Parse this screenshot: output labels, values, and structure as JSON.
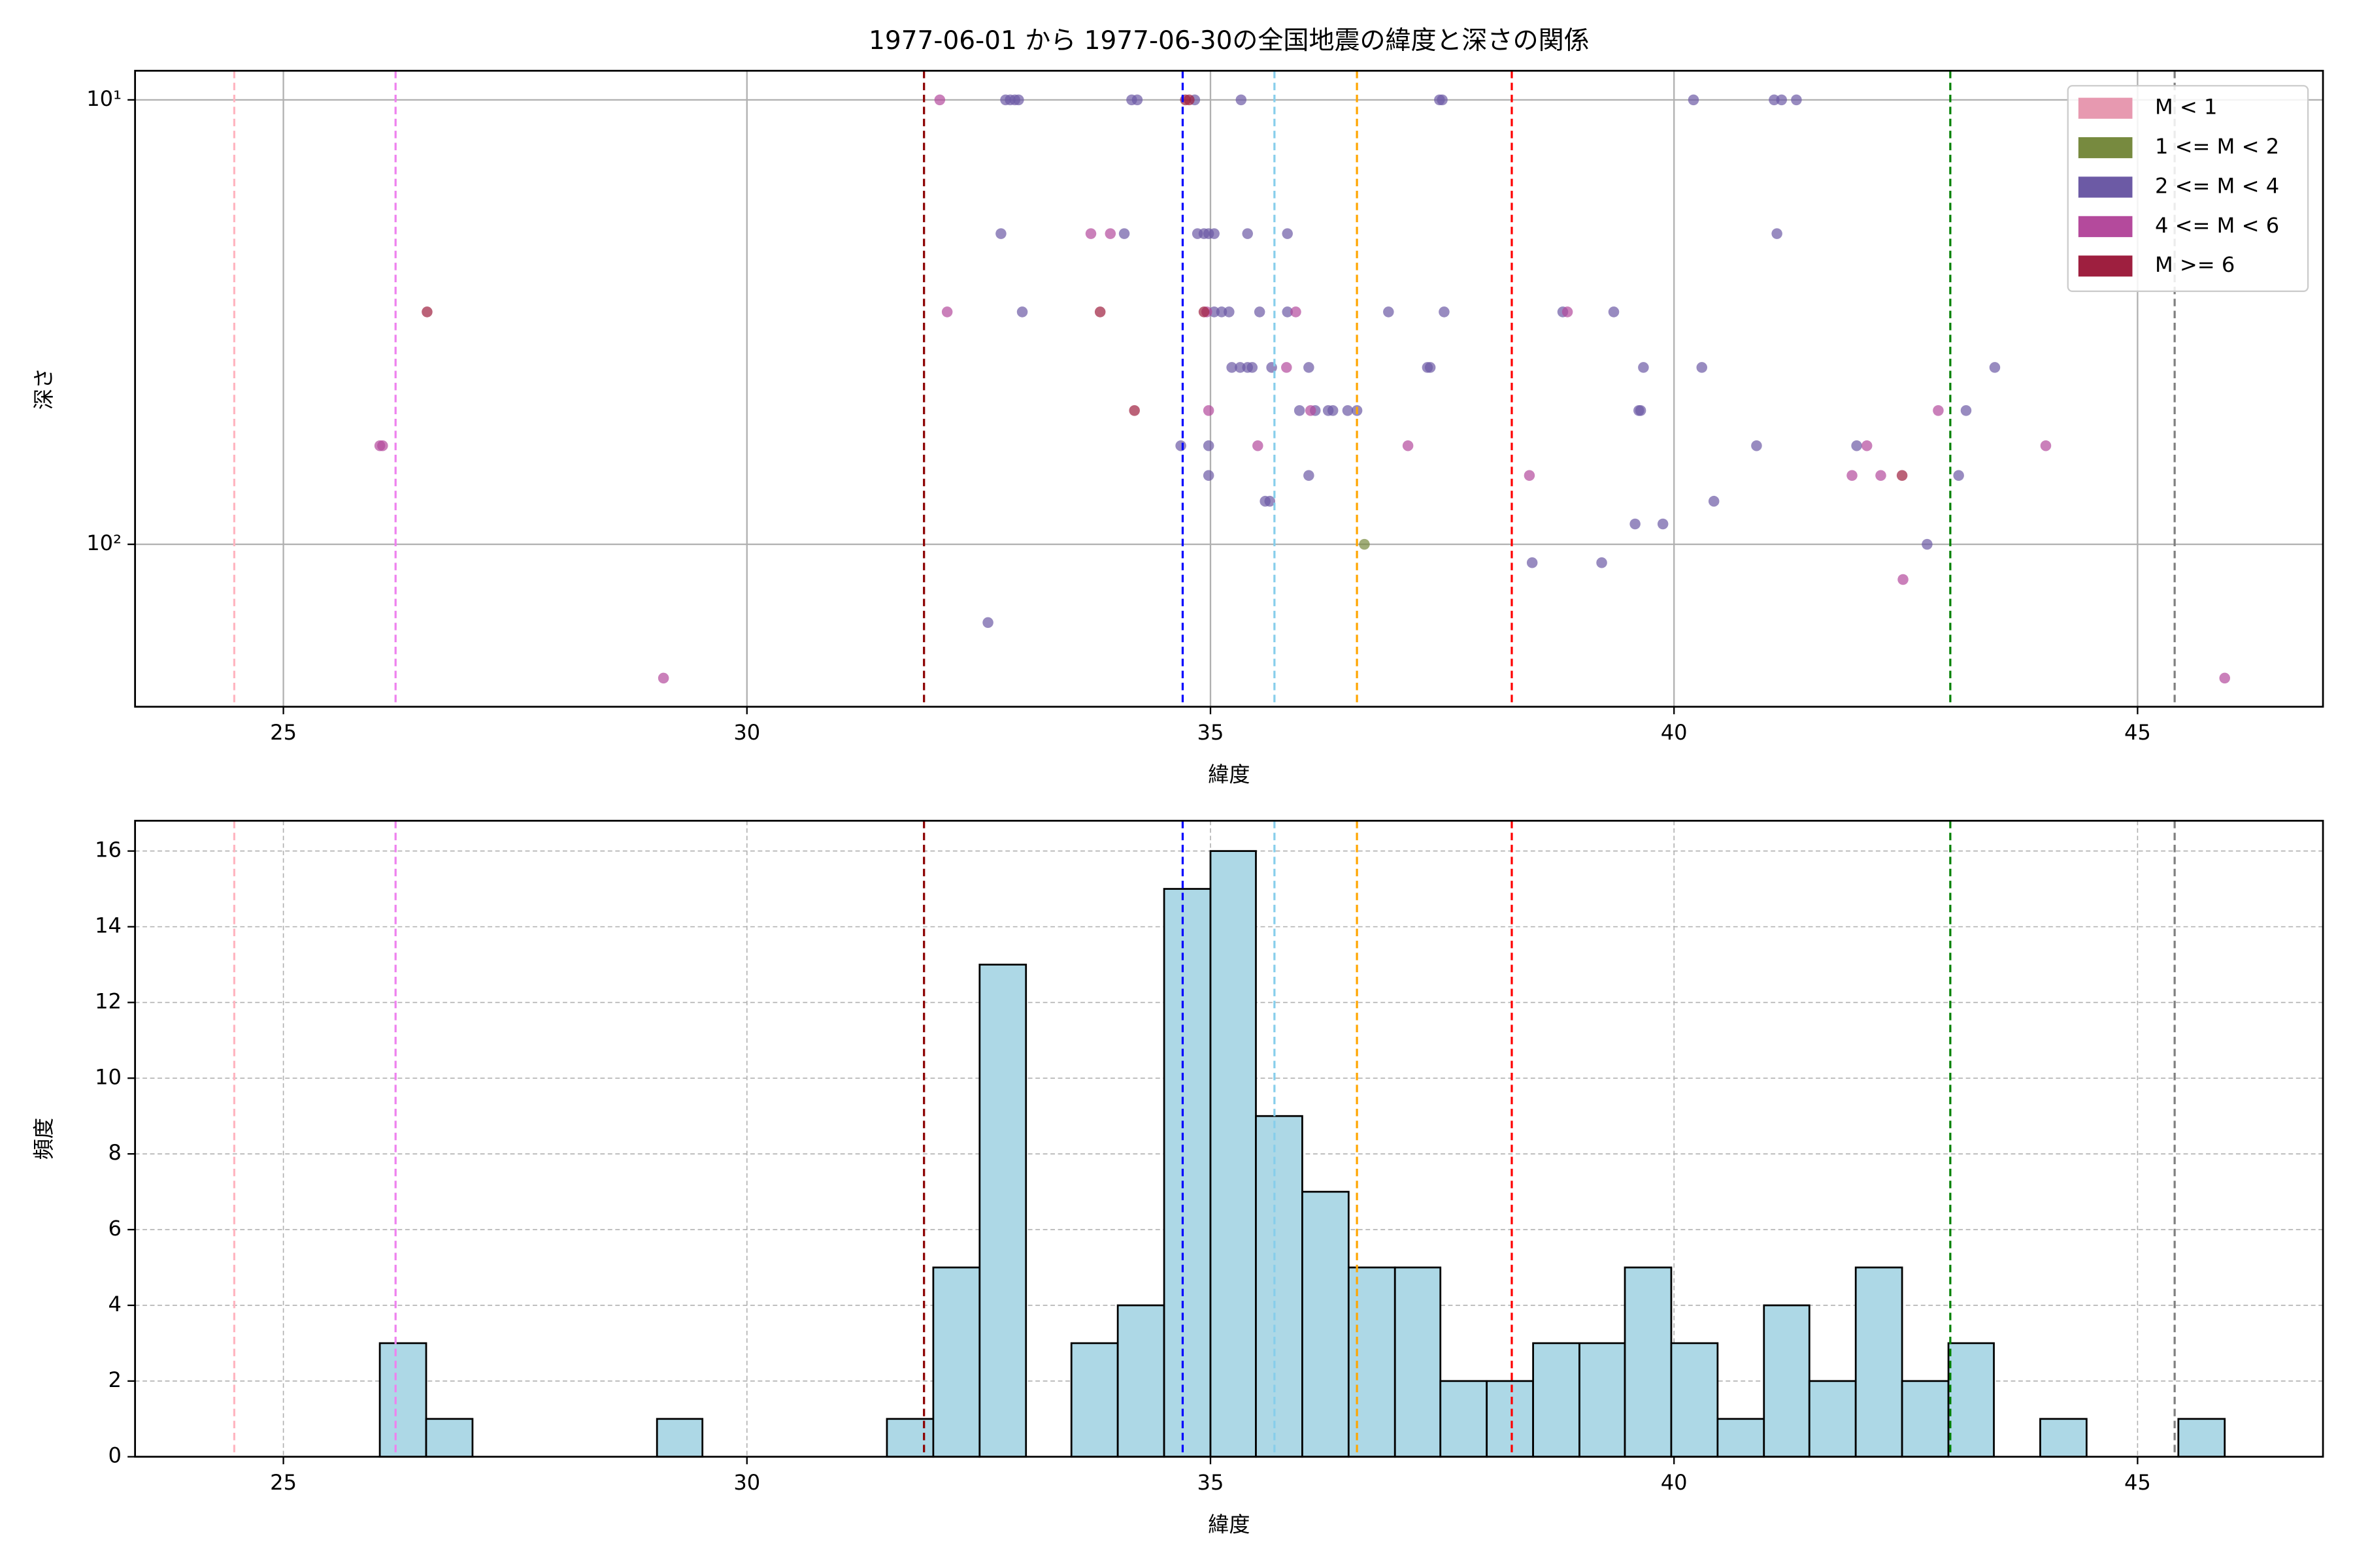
{
  "chart_data": [
    {
      "type": "scatter",
      "title": "1977-06-01 から 1977-06-30の全国地震の緯度と深さの関係",
      "xlabel": "緯度",
      "ylabel": "深さ",
      "xlim": [
        23.4,
        47.0
      ],
      "xticks": [
        25,
        30,
        35,
        40,
        45
      ],
      "ylim": [
        232,
        8.6
      ],
      "yticks": [
        {
          "value": 10,
          "label": "10¹"
        },
        {
          "value": 100,
          "label": "10²"
        }
      ],
      "log_y": true,
      "grid": true,
      "legend": "upper right",
      "vlines": [
        {
          "x": 24.47,
          "color": "#ffb6c1"
        },
        {
          "x": 26.21,
          "color": "#ee82ee"
        },
        {
          "x": 31.91,
          "color": "#8b0000"
        },
        {
          "x": 34.7,
          "color": "#0000ff"
        },
        {
          "x": 35.69,
          "color": "#87ceeb"
        },
        {
          "x": 36.58,
          "color": "#ffa500"
        },
        {
          "x": 38.25,
          "color": "#ff0000"
        },
        {
          "x": 42.98,
          "color": "#008000"
        },
        {
          "x": 45.4,
          "color": "#808080"
        }
      ],
      "series": [
        {
          "name": "M < 1",
          "color": "#e799b0",
          "x": [],
          "values": []
        },
        {
          "name": "1 <= M < 2",
          "color": "#778a3f",
          "x": [
            36.66
          ],
          "values": [
            100
          ]
        },
        {
          "name": "2 <= M < 4",
          "color": "#6c5aa5",
          "x": [
            32.79,
            32.84,
            32.89,
            32.93,
            34.15,
            34.21,
            34.83,
            35.33,
            37.47,
            37.5,
            40.21,
            41.08,
            41.16,
            41.32,
            32.74,
            34.07,
            34.86,
            34.93,
            34.98,
            35.04,
            35.4,
            35.83,
            41.11,
            32.97,
            35.04,
            35.12,
            35.2,
            35.53,
            35.83,
            36.92,
            37.52,
            38.8,
            39.35,
            35.23,
            35.32,
            35.4,
            35.45,
            35.66,
            36.06,
            37.34,
            37.37,
            39.67,
            40.3,
            43.46,
            35.96,
            36.13,
            36.27,
            36.32,
            36.48,
            36.58,
            39.62,
            39.64,
            43.15,
            34.68,
            34.98,
            40.89,
            41.97,
            34.98,
            36.06,
            43.07,
            35.59,
            35.64,
            40.43,
            39.58,
            39.88,
            42.73,
            38.47,
            39.22,
            32.6
          ],
          "values": [
            10,
            10,
            10,
            10,
            10,
            10,
            10,
            10,
            10,
            10,
            10,
            10,
            10,
            10,
            20,
            20,
            20,
            20,
            20,
            20,
            20,
            20,
            20,
            30,
            30,
            30,
            30,
            30,
            30,
            30,
            30,
            30,
            30,
            40,
            40,
            40,
            40,
            40,
            40,
            40,
            40,
            40,
            40,
            40,
            50,
            50,
            50,
            50,
            50,
            50,
            50,
            50,
            50,
            60,
            60,
            60,
            60,
            70,
            70,
            70,
            80,
            80,
            80,
            90,
            90,
            100,
            110,
            110,
            150
          ]
        },
        {
          "name": "4 <= M < 6",
          "color": "#b44a9c",
          "x": [
            32.08,
            33.71,
            33.92,
            32.16,
            34.96,
            35.92,
            38.85,
            35.82,
            34.98,
            36.08,
            42.85,
            26.04,
            26.07,
            35.51,
            37.13,
            42.08,
            44.01,
            38.44,
            41.92,
            42.23,
            42.47,
            29.1,
            45.94
          ],
          "values": [
            10,
            20,
            20,
            30,
            30,
            30,
            30,
            40,
            50,
            50,
            50,
            60,
            60,
            60,
            60,
            60,
            60,
            70,
            70,
            70,
            120,
            200,
            200
          ]
        },
        {
          "name": "M >= 6",
          "color": "#9e1f3f",
          "x": [
            34.73,
            34.77,
            26.55,
            33.81,
            34.93,
            34.18,
            42.46
          ],
          "values": [
            10,
            10,
            30,
            30,
            30,
            50,
            70
          ]
        }
      ]
    },
    {
      "type": "histogram",
      "xlabel": "緯度",
      "ylabel": "頻度",
      "xlim": [
        23.4,
        47.0
      ],
      "xticks": [
        25,
        30,
        35,
        40,
        45
      ],
      "ylim": [
        0,
        16.8
      ],
      "yticks": [
        0,
        2,
        4,
        6,
        8,
        10,
        12,
        14,
        16
      ],
      "grid": true,
      "color": "#add8e6",
      "edgecolor": "#000000",
      "vlines": [
        {
          "x": 24.47,
          "color": "#ffb6c1"
        },
        {
          "x": 26.21,
          "color": "#ee82ee"
        },
        {
          "x": 31.91,
          "color": "#8b0000"
        },
        {
          "x": 34.7,
          "color": "#0000ff"
        },
        {
          "x": 35.69,
          "color": "#87ceeb"
        },
        {
          "x": 36.58,
          "color": "#ffa500"
        },
        {
          "x": 38.25,
          "color": "#ff0000"
        },
        {
          "x": 42.98,
          "color": "#008000"
        },
        {
          "x": 45.4,
          "color": "#808080"
        }
      ],
      "bins": [
        26.04,
        26.54,
        27.04,
        27.53,
        28.03,
        28.53,
        29.03,
        29.52,
        30.02,
        30.52,
        31.02,
        31.51,
        32.01,
        32.51,
        33.01,
        33.5,
        34.0,
        34.5,
        35.0,
        35.49,
        35.99,
        36.49,
        36.99,
        37.48,
        37.98,
        38.48,
        38.98,
        39.47,
        39.97,
        40.47,
        40.97,
        41.46,
        41.96,
        42.46,
        42.96,
        43.45,
        43.95,
        44.45,
        44.95,
        45.44,
        45.94
      ],
      "values": [
        3,
        1,
        0,
        0,
        0,
        0,
        1,
        0,
        0,
        0,
        0,
        1,
        5,
        13,
        0,
        3,
        4,
        15,
        16,
        9,
        7,
        5,
        5,
        2,
        2,
        3,
        3,
        5,
        3,
        1,
        4,
        2,
        5,
        2,
        3,
        0,
        1,
        0,
        0,
        1
      ]
    }
  ]
}
